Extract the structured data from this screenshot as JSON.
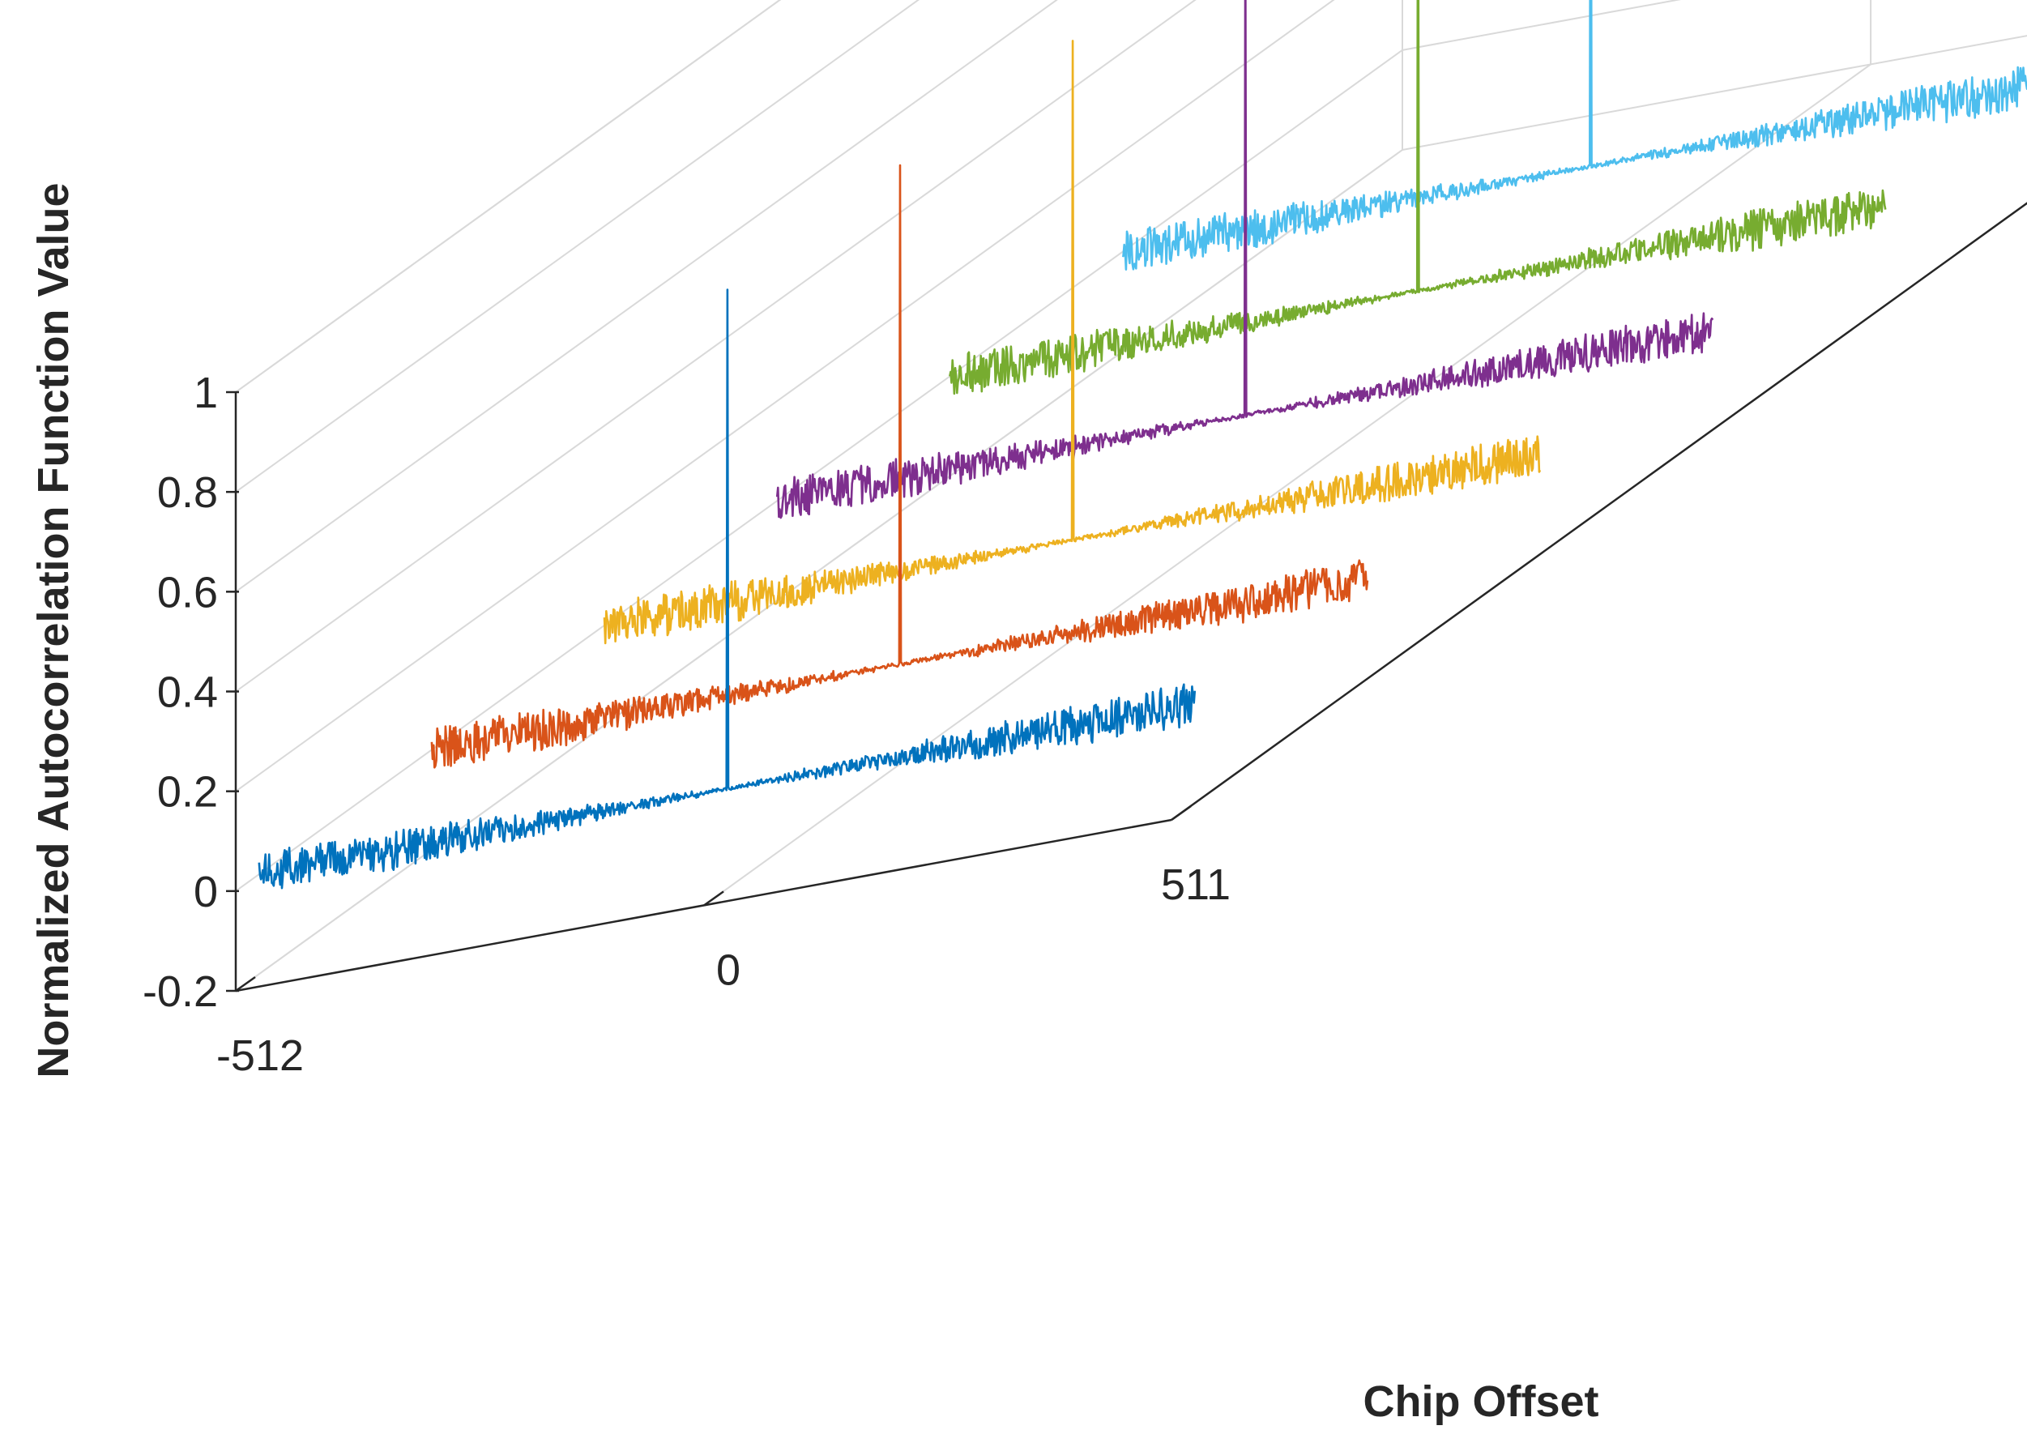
{
  "chart_data": {
    "type": "line",
    "subtype": "3d-waterfall",
    "title": "",
    "xlabel": "Chip Offset",
    "ylabel": "",
    "zlabel": "Normalized Autocorrelation Function Value",
    "xlim": [
      -512,
      511
    ],
    "zlim": [
      -0.2,
      1
    ],
    "x_ticks": [
      -512,
      0,
      511
    ],
    "x_tick_labels": [
      "-512",
      "0",
      "511"
    ],
    "z_ticks": [
      -0.2,
      0,
      0.2,
      0.4,
      0.6,
      0.8,
      1
    ],
    "z_tick_labels": [
      "-0.2",
      "0",
      "0.2",
      "0.4",
      "0.6",
      "0.8",
      "1"
    ],
    "grid": true,
    "legend": "none",
    "series": [
      {
        "color": "#4DBEEE",
        "peak_x": 0,
        "peak_value": 1.0,
        "noise_amplitude": 0.04
      },
      {
        "color": "#77AC30",
        "peak_x": 0,
        "peak_value": 1.0,
        "noise_amplitude": 0.04
      },
      {
        "color": "#7E2F8E",
        "peak_x": 0,
        "peak_value": 1.0,
        "noise_amplitude": 0.04
      },
      {
        "color": "#EDB120",
        "peak_x": 0,
        "peak_value": 1.0,
        "noise_amplitude": 0.04
      },
      {
        "color": "#D95319",
        "peak_x": 0,
        "peak_value": 1.0,
        "noise_amplitude": 0.04
      },
      {
        "color": "#0072BD",
        "peak_x": 0,
        "peak_value": 1.0,
        "noise_amplitude": 0.04
      }
    ]
  }
}
